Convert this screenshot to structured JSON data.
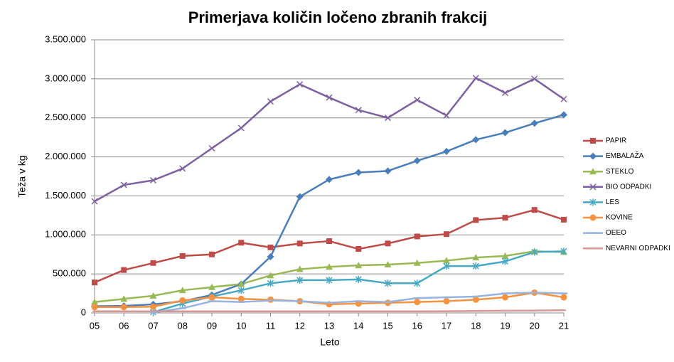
{
  "chart_data": {
    "type": "line",
    "title": "Primerjava količin ločeno zbranih frakcij",
    "x_label": "Leto",
    "y_label": "Teža v kg",
    "categories": [
      "05",
      "06",
      "07",
      "08",
      "09",
      "10",
      "11",
      "12",
      "13",
      "14",
      "15",
      "16",
      "17",
      "18",
      "19",
      "20",
      "21"
    ],
    "ylim": [
      0,
      3500000
    ],
    "yticks": [
      0,
      {
        "value": 500000,
        "label": "500.000"
      },
      {
        "value": 1000000,
        "label": "1.000.000"
      },
      {
        "value": 1500000,
        "label": "1.500.000"
      },
      {
        "value": 2000000,
        "label": "2.000.000"
      },
      {
        "value": 2500000,
        "label": "2.500.000"
      },
      {
        "value": 3000000,
        "label": "3.000.000"
      },
      {
        "value": 3500000,
        "label": "3.500.000"
      }
    ],
    "grid": true,
    "legend": "right",
    "series": [
      {
        "name": "PAPIR",
        "color": "#be4b48",
        "marker": "square",
        "values": [
          390000,
          550000,
          640000,
          730000,
          750000,
          900000,
          840000,
          890000,
          920000,
          820000,
          890000,
          980000,
          1010000,
          1190000,
          1220000,
          1320000,
          1195000
        ]
      },
      {
        "name": "EMBALAŽA",
        "color": "#4a7ebb",
        "marker": "diamond",
        "values": [
          85000,
          90000,
          110000,
          150000,
          230000,
          370000,
          720000,
          1490000,
          1710000,
          1800000,
          1820000,
          1950000,
          2070000,
          2220000,
          2310000,
          2430000,
          2540000
        ]
      },
      {
        "name": "STEKLO",
        "color": "#98b954",
        "marker": "triangle",
        "values": [
          140000,
          180000,
          220000,
          290000,
          330000,
          370000,
          480000,
          560000,
          590000,
          610000,
          620000,
          640000,
          670000,
          710000,
          730000,
          790000,
          780000
        ]
      },
      {
        "name": "BIO ODPADKI",
        "color": "#7d60a0",
        "marker": "x",
        "values": [
          1430000,
          1640000,
          1700000,
          1850000,
          2110000,
          2370000,
          2710000,
          2930000,
          2760000,
          2600000,
          2500000,
          2730000,
          2530000,
          3010000,
          2820000,
          3000000,
          2740000
        ]
      },
      {
        "name": "LES",
        "color": "#46aac5",
        "marker": "star",
        "values": [
          null,
          null,
          10000,
          120000,
          210000,
          290000,
          380000,
          420000,
          420000,
          430000,
          380000,
          380000,
          600000,
          600000,
          660000,
          780000,
          790000
        ]
      },
      {
        "name": "KOVINE",
        "color": "#f69240",
        "marker": "circle",
        "values": [
          75000,
          75000,
          80000,
          160000,
          200000,
          180000,
          170000,
          150000,
          110000,
          120000,
          130000,
          140000,
          150000,
          170000,
          200000,
          260000,
          200000
        ]
      },
      {
        "name": "OEEO",
        "color": "#97b3e0",
        "marker": "plus",
        "values": [
          null,
          null,
          5000,
          60000,
          150000,
          140000,
          160000,
          150000,
          130000,
          150000,
          140000,
          190000,
          200000,
          210000,
          250000,
          260000,
          250000
        ]
      },
      {
        "name": "NEVARNI ODPADKI",
        "color": "#d99594",
        "marker": "dash",
        "values": [
          20000,
          20000,
          20000,
          20000,
          20000,
          20000,
          20000,
          20000,
          20000,
          20000,
          20000,
          20000,
          22000,
          25000,
          28000,
          30000,
          35000
        ]
      }
    ]
  }
}
